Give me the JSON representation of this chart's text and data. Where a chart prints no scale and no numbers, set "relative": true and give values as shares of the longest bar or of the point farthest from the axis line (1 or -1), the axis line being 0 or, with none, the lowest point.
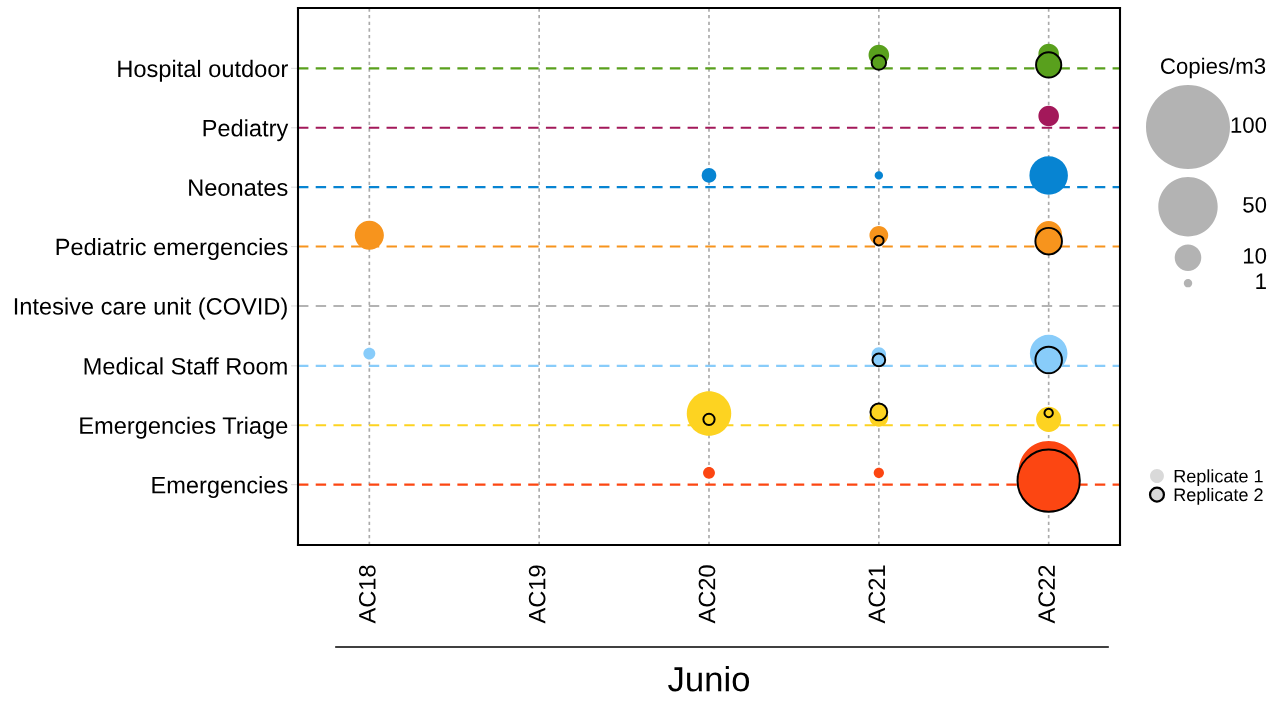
{
  "chart_data": {
    "type": "bubble",
    "relative": true,
    "xlabel": "Junio",
    "legend_title": "Copies/m3",
    "categories": [
      "AC18",
      "AC19",
      "AC20",
      "AC21",
      "AC22"
    ],
    "y_categories": [
      "Hospital outdoor",
      "Pediatry",
      "Neonates",
      "Pediatric emergencies",
      "Intesive care unit (COVID)",
      "Medical Staff Room",
      "Emergencies Triage",
      "Emergencies"
    ],
    "grid": "x",
    "legend": "right",
    "size_legend": [
      100,
      50,
      10,
      1
    ],
    "ref_lines": [
      {
        "axis": "y",
        "value": 0.971,
        "color": "#59a01d",
        "line_style": "dashed"
      },
      {
        "axis": "y",
        "value": 0.85,
        "color": "#a3185a",
        "line_style": "dashed"
      },
      {
        "axis": "y",
        "value": 0.729,
        "color": "#0784d2",
        "line_style": "dashed"
      },
      {
        "axis": "y",
        "value": 0.608,
        "color": "#f7941d",
        "line_style": "dashed"
      },
      {
        "axis": "y",
        "value": 0.487,
        "color": "#b3b3b3",
        "line_style": "dashed"
      },
      {
        "axis": "y",
        "value": 0.365,
        "color": "#88ccfa",
        "line_style": "dashed"
      },
      {
        "axis": "y",
        "value": 0.244,
        "color": "#fdd321",
        "line_style": "dashed"
      },
      {
        "axis": "y",
        "value": 0.123,
        "color": "#fc4612",
        "line_style": "dashed"
      }
    ],
    "series": [
      {
        "name": "Replicate 1",
        "color": "#d9d9d9",
        "x": [
          "AC21",
          "AC22",
          "AC22",
          "AC20",
          "AC21",
          "AC22",
          "AC18",
          "AC21",
          "AC22",
          "AC18",
          "AC21",
          "AC22",
          "AC20",
          "AC21",
          "AC22",
          "AC20",
          "AC21",
          "AC22"
        ],
        "values": [
          0.998,
          1,
          0.874,
          0.753,
          0.753,
          0.753,
          0.631,
          0.631,
          0.633,
          0.39,
          0.388,
          0.39,
          0.268,
          0.26,
          0.256,
          0.147,
          0.147,
          0.151
        ],
        "sizes": [
          6,
          6,
          6,
          3,
          1,
          21,
          12,
          5,
          10,
          2,
          3,
          20,
          28,
          5,
          9,
          2,
          1.5,
          51
        ],
        "colors": [
          "#59a01d",
          "#59a01d",
          "#a3185a",
          "#0784d2",
          "#0784d2",
          "#0784d2",
          "#f7941d",
          "#f7941d",
          "#f7941d",
          "#88ccfa",
          "#88ccfa",
          "#88ccfa",
          "#fdd321",
          "#fdd321",
          "#fdd321",
          "#fc4612",
          "#fc4612",
          "#fc4612"
        ]
      },
      {
        "name": "Replicate 2",
        "color": "#d9d9d9",
        "line_style": "solid",
        "x": [
          "AC21",
          "AC22",
          "AC21",
          "AC22",
          "AC21",
          "AC22",
          "AC20",
          "AC21",
          "AC22",
          "AC22"
        ],
        "values": [
          0.983,
          0.978,
          0.62,
          0.619,
          0.377,
          0.377,
          0.256,
          0.271,
          0.269,
          0.131
        ],
        "sizes": [
          3,
          9,
          1.3,
          10,
          2.3,
          10,
          1.8,
          4,
          1,
          55
        ],
        "colors": [
          "#59a01d",
          "#59a01d",
          "#f7941d",
          "#f7941d",
          "#88ccfa",
          "#88ccfa",
          "#fdd321",
          "#fdd321",
          "#fdd321",
          "#fc4612"
        ]
      }
    ]
  }
}
